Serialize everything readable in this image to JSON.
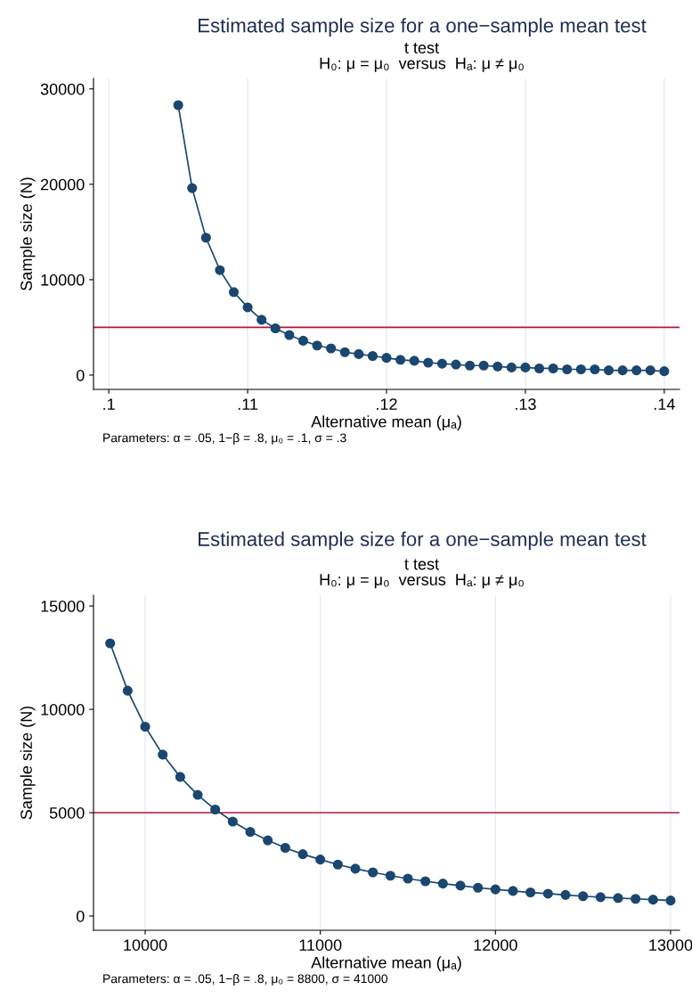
{
  "chart_data": [
    {
      "type": "line",
      "title": "Estimated sample size for a one−sample mean test",
      "subtitle": "t test\nH₀: μ = μ₀  versus  Hₐ: μ ≠ μ₀",
      "xlabel": "Alternative mean (μₐ)",
      "ylabel": "Sample size (N)",
      "x": [
        0.105,
        0.106,
        0.107,
        0.108,
        0.109,
        0.11,
        0.111,
        0.112,
        0.113,
        0.114,
        0.115,
        0.116,
        0.117,
        0.118,
        0.119,
        0.12,
        0.121,
        0.122,
        0.123,
        0.124,
        0.125,
        0.126,
        0.127,
        0.128,
        0.129,
        0.13,
        0.131,
        0.132,
        0.133,
        0.134,
        0.135,
        0.136,
        0.137,
        0.138,
        0.139,
        0.14
      ],
      "series": [
        {
          "color": "#1a476f",
          "values": [
            28300,
            19600,
            14400,
            11000,
            8700,
            7100,
            5800,
            4900,
            4200,
            3600,
            3100,
            2800,
            2400,
            2200,
            2000,
            1800,
            1600,
            1500,
            1300,
            1200,
            1100,
            1000,
            1000,
            900,
            800,
            800,
            700,
            700,
            600,
            600,
            600,
            500,
            500,
            500,
            500,
            400
          ]
        }
      ],
      "marker": "circle",
      "line_style": "solid",
      "grid": "x",
      "xlim": [
        0.0989,
        0.1411
      ],
      "xticks": [
        {
          "value": 0.1,
          "label": ".1"
        },
        {
          "value": 0.11,
          "label": ".11"
        },
        {
          "value": 0.12,
          "label": ".12"
        },
        {
          "value": 0.13,
          "label": ".13"
        },
        {
          "value": 0.14,
          "label": ".14"
        }
      ],
      "ylim": [
        -1500,
        31100
      ],
      "yticks": [
        0,
        10000,
        20000,
        30000
      ],
      "ref_lines": [
        {
          "axis": "y",
          "value": 5000,
          "color": "#b5163b"
        }
      ],
      "annotations": [
        "Parameters: α = .05, 1−β = .8, μ₀ = .1, σ = .3"
      ]
    },
    {
      "type": "line",
      "title": "Estimated sample size for a one−sample mean test",
      "subtitle": "t test\nH₀: μ = μ₀  versus  Hₐ: μ ≠ μ₀",
      "xlabel": "Alternative mean (μₐ)",
      "ylabel": "Sample size (N)",
      "x": [
        9800,
        9900,
        10000,
        10100,
        10200,
        10300,
        10400,
        10500,
        10600,
        10700,
        10800,
        10900,
        11000,
        11100,
        11200,
        11300,
        11400,
        11500,
        11600,
        11700,
        11800,
        11900,
        12000,
        12100,
        12200,
        12300,
        12400,
        12500,
        12600,
        12700,
        12800,
        12900,
        13000
      ],
      "series": [
        {
          "color": "#1a476f",
          "values": [
            13190,
            10900,
            9160,
            7810,
            6730,
            5860,
            5150,
            4570,
            4070,
            3660,
            3300,
            2990,
            2730,
            2490,
            2290,
            2110,
            1950,
            1810,
            1680,
            1570,
            1470,
            1370,
            1290,
            1210,
            1140,
            1080,
            1020,
            960,
            910,
            870,
            830,
            790,
            750
          ]
        }
      ],
      "marker": "circle",
      "line_style": "solid",
      "grid": "x",
      "xlim": [
        9705,
        13051
      ],
      "xticks": [
        10000,
        11000,
        12000,
        13000
      ],
      "ylim": [
        -690,
        15520
      ],
      "yticks": [
        0,
        5000,
        10000,
        15000
      ],
      "ref_lines": [
        {
          "axis": "y",
          "value": 5000,
          "color": "#b5163b"
        }
      ],
      "annotations": [
        "Parameters: α = .05, 1−β = .8, μ₀ = 8800, σ = 41000"
      ]
    }
  ]
}
